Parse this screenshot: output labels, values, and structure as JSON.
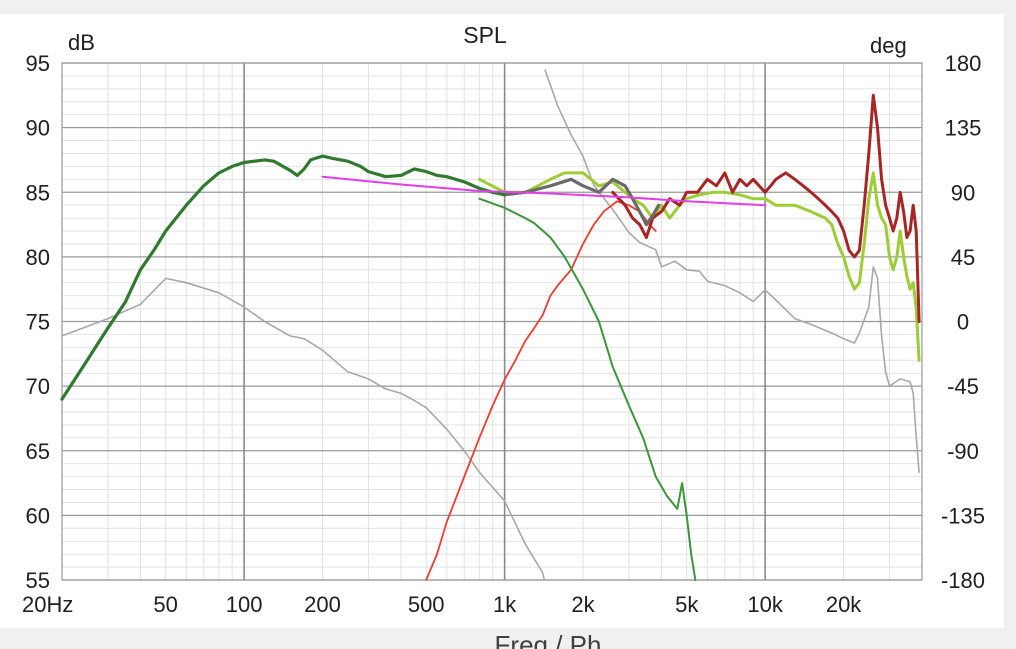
{
  "chart_data": {
    "type": "line",
    "title": "SPL",
    "y_left_unit": "dB",
    "y_right_unit": "deg",
    "x_scale": "log",
    "xlim": [
      20,
      40000
    ],
    "ylim": [
      55,
      95
    ],
    "ylim_right": [
      -180,
      180
    ],
    "y_ticks": [
      95,
      90,
      85,
      80,
      75,
      70,
      65,
      60,
      55
    ],
    "y_right_ticks": [
      180,
      135,
      90,
      45,
      0,
      -45,
      -90,
      -135,
      -180
    ],
    "x_ticks": [
      {
        "value": 20,
        "label": "20Hz"
      },
      {
        "value": 50,
        "label": "50"
      },
      {
        "value": 100,
        "label": "100"
      },
      {
        "value": 200,
        "label": "200"
      },
      {
        "value": 500,
        "label": "500"
      },
      {
        "value": 1000,
        "label": "1k"
      },
      {
        "value": 2000,
        "label": "2k"
      },
      {
        "value": 5000,
        "label": "5k"
      },
      {
        "value": 10000,
        "label": "10k"
      },
      {
        "value": 20000,
        "label": "20k"
      }
    ],
    "grid": true,
    "series": [
      {
        "color": "#a8a8a8",
        "width": 1.6,
        "axis": "right",
        "points": [
          [
            20,
            -10
          ],
          [
            30,
            2
          ],
          [
            40,
            12
          ],
          [
            50,
            30
          ],
          [
            60,
            27
          ],
          [
            80,
            20
          ],
          [
            100,
            10
          ],
          [
            120,
            0
          ],
          [
            150,
            -10
          ],
          [
            170,
            -12
          ],
          [
            200,
            -20
          ],
          [
            250,
            -35
          ],
          [
            300,
            -40
          ],
          [
            350,
            -47
          ],
          [
            400,
            -50
          ],
          [
            450,
            -55
          ],
          [
            500,
            -60
          ],
          [
            600,
            -75
          ],
          [
            700,
            -90
          ],
          [
            800,
            -105
          ],
          [
            1000,
            -125
          ],
          [
            1200,
            -155
          ],
          [
            1400,
            -175
          ],
          [
            1420,
            -180
          ],
          [
            1430,
            175
          ],
          [
            1600,
            150
          ],
          [
            1800,
            130
          ],
          [
            2000,
            115
          ],
          [
            2200,
            95
          ],
          [
            2600,
            78
          ],
          [
            3000,
            62
          ],
          [
            3300,
            55
          ],
          [
            3800,
            50
          ],
          [
            4000,
            38
          ],
          [
            4500,
            42
          ],
          [
            5000,
            36
          ],
          [
            5600,
            35
          ],
          [
            6000,
            28
          ],
          [
            7000,
            25
          ],
          [
            8000,
            20
          ],
          [
            9000,
            14
          ],
          [
            10000,
            22
          ],
          [
            11000,
            15
          ],
          [
            13000,
            2
          ],
          [
            15000,
            -2
          ],
          [
            18000,
            -8
          ],
          [
            20000,
            -12
          ],
          [
            22000,
            -15
          ],
          [
            23000,
            -8
          ],
          [
            25000,
            10
          ],
          [
            26000,
            38
          ],
          [
            27000,
            30
          ],
          [
            28000,
            -10
          ],
          [
            29000,
            -35
          ],
          [
            30000,
            -45
          ],
          [
            33000,
            -40
          ],
          [
            36000,
            -42
          ],
          [
            37000,
            -50
          ],
          [
            38000,
            -80
          ],
          [
            39000,
            -105
          ]
        ]
      },
      {
        "color": "#ee3c2f",
        "width": 1.8,
        "axis": "left",
        "points": [
          [
            500,
            55
          ],
          [
            550,
            57
          ],
          [
            600,
            59.5
          ],
          [
            700,
            63
          ],
          [
            800,
            66
          ],
          [
            900,
            68.5
          ],
          [
            1000,
            70.5
          ],
          [
            1100,
            72
          ],
          [
            1200,
            73.5
          ],
          [
            1300,
            74.5
          ],
          [
            1400,
            75.5
          ],
          [
            1500,
            77
          ],
          [
            1600,
            77.8
          ],
          [
            1800,
            79
          ],
          [
            2000,
            81
          ],
          [
            2200,
            82.5
          ],
          [
            2400,
            83.5
          ],
          [
            2700,
            84.3
          ],
          [
            3000,
            84
          ],
          [
            3300,
            83.5
          ],
          [
            3600,
            82.5
          ],
          [
            3800,
            82
          ]
        ]
      },
      {
        "color": "#3b963b",
        "width": 2,
        "axis": "left",
        "points": [
          [
            800,
            84.5
          ],
          [
            1000,
            83.8
          ],
          [
            1200,
            83
          ],
          [
            1300,
            82.6
          ],
          [
            1500,
            81.5
          ],
          [
            1700,
            80
          ],
          [
            2000,
            77.5
          ],
          [
            2300,
            75
          ],
          [
            2600,
            71.5
          ],
          [
            3000,
            68.5
          ],
          [
            3400,
            66
          ],
          [
            3800,
            63
          ],
          [
            4200,
            61.5
          ],
          [
            4600,
            60.5
          ],
          [
            4800,
            62.5
          ],
          [
            5000,
            60
          ],
          [
            5200,
            57
          ],
          [
            5400,
            55
          ]
        ]
      },
      {
        "color": "#9dcd36",
        "width": 3,
        "axis": "left",
        "points": [
          [
            800,
            86
          ],
          [
            1000,
            85
          ],
          [
            1200,
            85
          ],
          [
            1500,
            86
          ],
          [
            1700,
            86.5
          ],
          [
            2000,
            86.5
          ],
          [
            2300,
            85.5
          ],
          [
            2600,
            85.8
          ],
          [
            2900,
            85
          ],
          [
            3100,
            84.5
          ],
          [
            3400,
            84
          ],
          [
            3700,
            83
          ],
          [
            4000,
            84
          ],
          [
            4300,
            83
          ],
          [
            4700,
            84
          ],
          [
            5000,
            84.5
          ],
          [
            5600,
            84.8
          ],
          [
            6300,
            85
          ],
          [
            7000,
            85
          ],
          [
            8000,
            84.8
          ],
          [
            9000,
            84.5
          ],
          [
            10000,
            84.5
          ],
          [
            11000,
            84
          ],
          [
            13000,
            84
          ],
          [
            15000,
            83.5
          ],
          [
            17000,
            83
          ],
          [
            18000,
            82.5
          ],
          [
            19000,
            81
          ],
          [
            20000,
            80
          ],
          [
            21000,
            78.5
          ],
          [
            22000,
            77.5
          ],
          [
            23000,
            78
          ],
          [
            24000,
            81
          ],
          [
            25000,
            84.5
          ],
          [
            26000,
            86.5
          ],
          [
            27000,
            84
          ],
          [
            28000,
            83
          ],
          [
            29000,
            82.5
          ],
          [
            30000,
            80
          ],
          [
            31000,
            79
          ],
          [
            32000,
            80
          ],
          [
            33000,
            82
          ],
          [
            34000,
            80
          ],
          [
            35000,
            78.5
          ],
          [
            36000,
            77.5
          ],
          [
            37000,
            78
          ],
          [
            38000,
            76
          ],
          [
            39000,
            72
          ]
        ]
      },
      {
        "color": "#a92525",
        "width": 3,
        "axis": "left",
        "points": [
          [
            2600,
            85
          ],
          [
            2900,
            84
          ],
          [
            3100,
            83
          ],
          [
            3300,
            82.5
          ],
          [
            3500,
            81.5
          ],
          [
            3700,
            83
          ],
          [
            4000,
            83.5
          ],
          [
            4300,
            84.5
          ],
          [
            4700,
            84
          ],
          [
            5000,
            85
          ],
          [
            5500,
            85
          ],
          [
            6000,
            86
          ],
          [
            6500,
            85.5
          ],
          [
            7000,
            86.5
          ],
          [
            7500,
            85
          ],
          [
            8000,
            86
          ],
          [
            8500,
            85.5
          ],
          [
            9000,
            86
          ],
          [
            10000,
            85
          ],
          [
            10500,
            85.5
          ],
          [
            11000,
            86
          ],
          [
            12000,
            86.5
          ],
          [
            13000,
            86
          ],
          [
            14000,
            85.5
          ],
          [
            15000,
            85
          ],
          [
            16000,
            84.5
          ],
          [
            17000,
            84
          ],
          [
            18000,
            83.5
          ],
          [
            19000,
            83
          ],
          [
            20000,
            82
          ],
          [
            21000,
            80.5
          ],
          [
            22000,
            80
          ],
          [
            23000,
            80.5
          ],
          [
            24000,
            84
          ],
          [
            25000,
            88
          ],
          [
            26000,
            92.5
          ],
          [
            27000,
            90
          ],
          [
            28000,
            86
          ],
          [
            29000,
            84
          ],
          [
            30000,
            83
          ],
          [
            31000,
            82
          ],
          [
            32000,
            83
          ],
          [
            33000,
            85
          ],
          [
            34000,
            83.5
          ],
          [
            35000,
            81.5
          ],
          [
            36000,
            82
          ],
          [
            37000,
            84
          ],
          [
            38000,
            82
          ],
          [
            39000,
            75
          ]
        ]
      },
      {
        "color": "#6a6a6a",
        "width": 3.2,
        "axis": "left",
        "points": [
          [
            1000,
            84.8
          ],
          [
            1200,
            85
          ],
          [
            1500,
            85.5
          ],
          [
            1800,
            86
          ],
          [
            2000,
            85.5
          ],
          [
            2300,
            85
          ],
          [
            2600,
            86
          ],
          [
            2900,
            85.5
          ],
          [
            3100,
            84.5
          ],
          [
            3300,
            83.5
          ],
          [
            3500,
            82.5
          ],
          [
            3700,
            83.2
          ],
          [
            3900,
            84
          ]
        ]
      },
      {
        "color": "#2f7a2f",
        "width": 3.2,
        "axis": "left",
        "points": [
          [
            20,
            69
          ],
          [
            25,
            72
          ],
          [
            30,
            74.5
          ],
          [
            35,
            76.5
          ],
          [
            40,
            79
          ],
          [
            45,
            80.5
          ],
          [
            50,
            82
          ],
          [
            60,
            84
          ],
          [
            70,
            85.5
          ],
          [
            80,
            86.5
          ],
          [
            90,
            87
          ],
          [
            100,
            87.3
          ],
          [
            120,
            87.5
          ],
          [
            130,
            87.4
          ],
          [
            150,
            86.7
          ],
          [
            160,
            86.3
          ],
          [
            170,
            86.8
          ],
          [
            180,
            87.5
          ],
          [
            200,
            87.8
          ],
          [
            220,
            87.6
          ],
          [
            250,
            87.4
          ],
          [
            280,
            87
          ],
          [
            300,
            86.6
          ],
          [
            350,
            86.2
          ],
          [
            400,
            86.3
          ],
          [
            450,
            86.8
          ],
          [
            500,
            86.6
          ],
          [
            550,
            86.3
          ],
          [
            600,
            86.2
          ],
          [
            700,
            85.8
          ],
          [
            800,
            85.3
          ],
          [
            900,
            85
          ],
          [
            1000,
            84.8
          ]
        ]
      },
      {
        "color": "#e040e8",
        "width": 2,
        "axis": "left",
        "points": [
          [
            200,
            86.2
          ],
          [
            400,
            85.6
          ],
          [
            800,
            85.1
          ],
          [
            1500,
            84.9
          ],
          [
            3000,
            84.6
          ],
          [
            5000,
            84.3
          ],
          [
            10000,
            84
          ]
        ]
      }
    ]
  },
  "footer": {
    "text": "Freq / Ph"
  }
}
